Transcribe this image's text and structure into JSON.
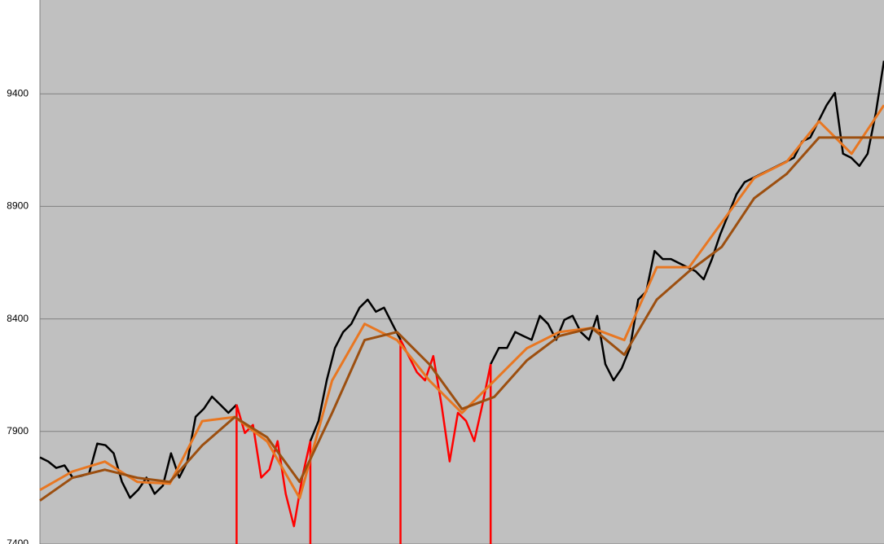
{
  "chart_data": {
    "type": "line",
    "ylim": [
      7400,
      9817
    ],
    "yticks": [
      7400,
      7900,
      8400,
      8900,
      9400
    ],
    "grid": true,
    "series": [
      {
        "color": "#000000",
        "values": [
          7785,
          7767,
          7738,
          7749,
          7695,
          7702,
          7713,
          7846,
          7839,
          7803,
          7677,
          7605,
          7641,
          7695,
          7623,
          7659,
          7803,
          7695,
          7767,
          7965,
          8001,
          8055,
          8019,
          7983,
          8019,
          null,
          null,
          null,
          null,
          null,
          null,
          null,
          null,
          7857,
          7947,
          8127,
          8271,
          8342,
          8378,
          8450,
          8486,
          8432,
          8450,
          8378,
          8307,
          null,
          null,
          null,
          null,
          null,
          null,
          null,
          null,
          null,
          null,
          8199,
          8271,
          8271,
          8342,
          8324,
          8307,
          8414,
          8378,
          8307,
          8396,
          8414,
          8342,
          8307,
          8414,
          8199,
          8127,
          8181,
          8271,
          8486,
          8522,
          8702,
          8666,
          8666,
          8648,
          8630,
          8612,
          8576,
          8666,
          8774,
          8864,
          8954,
          9008,
          9026,
          9044,
          9062,
          9080,
          9098,
          9116,
          9188,
          9206,
          9278,
          9350,
          9404,
          9134,
          9116,
          9080,
          9134,
          9314,
          9547
        ]
      },
      {
        "color": "#ff0000",
        "values": [
          null,
          null,
          null,
          null,
          null,
          null,
          null,
          null,
          null,
          null,
          null,
          null,
          null,
          null,
          null,
          null,
          null,
          null,
          null,
          null,
          null,
          null,
          null,
          null,
          8019,
          7893,
          7929,
          7695,
          7731,
          7857,
          7623,
          7479,
          7695,
          7857,
          null,
          null,
          null,
          null,
          null,
          null,
          null,
          null,
          null,
          null,
          8307,
          8235,
          8163,
          8127,
          8235,
          8019,
          7767,
          7983,
          7947,
          7857,
          8019,
          8199,
          null,
          null,
          null,
          null,
          null,
          null,
          null,
          null,
          null,
          null,
          null,
          null,
          null,
          null,
          null,
          null,
          null,
          null,
          null,
          null,
          null,
          null,
          null,
          null,
          null,
          null,
          null,
          null,
          null,
          null,
          null,
          null,
          null,
          null,
          null,
          null,
          null,
          null,
          null,
          null,
          null,
          null,
          null,
          null,
          null,
          null,
          null,
          null
        ]
      },
      {
        "color": "#e87722",
        "values": [
          7640,
          7722,
          7766,
          7676,
          7668,
          7946,
          7964,
          7856,
          7604,
          8126,
          8378,
          8306,
          8126,
          7982,
          8126,
          8270,
          8342,
          8360,
          8306,
          8630,
          8630,
          8828,
          9026,
          9098,
          9278,
          9134,
          9350
        ]
      },
      {
        "color": "#9c4f10",
        "values": [
          7593,
          7694,
          7730,
          7694,
          7676,
          7838,
          7964,
          7874,
          7676,
          7982,
          8306,
          8342,
          8198,
          8000,
          8054,
          8216,
          8324,
          8360,
          8241,
          8486,
          8612,
          8720,
          8936,
          9044,
          9206,
          9206,
          9206
        ]
      }
    ]
  }
}
